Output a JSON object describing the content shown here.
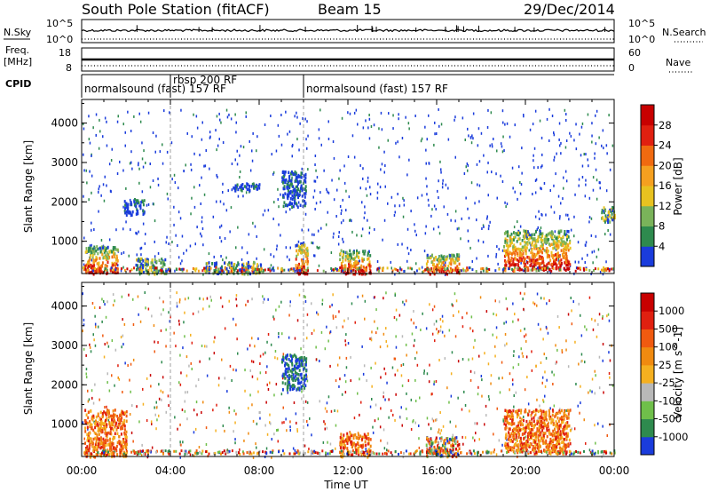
{
  "header": {
    "station": "South Pole Station (fitACF)",
    "beam": "Beam 15",
    "date": "29/Dec/2014"
  },
  "params": {
    "nsky_label": "N.Sky",
    "nsearch_label": "N.Search",
    "freq_label_1": "Freq.",
    "freq_label_2": "[MHz]",
    "nave_label": "Nave",
    "cpid_label": "CPID",
    "ticks_left": [
      "10^5",
      "10^0",
      "18",
      "8"
    ],
    "ticks_right": [
      "10^5",
      "10^0",
      "60",
      "0"
    ]
  },
  "cpid": {
    "segments": [
      {
        "label": "normalsound (fast) 157 RF",
        "start_hour": 0
      },
      {
        "label": "rbsp 200 RF",
        "start_hour": 4
      },
      {
        "label": "normalsound (fast) 157 RF",
        "start_hour": 10
      }
    ]
  },
  "axes": {
    "x_label": "Time UT",
    "y_label": "Slant Range [km]",
    "x_ticks": [
      "00:00",
      "04:00",
      "08:00",
      "12:00",
      "16:00",
      "20:00",
      "00:00"
    ],
    "y_ticks": [
      "1000",
      "2000",
      "3000",
      "4000"
    ]
  },
  "power_colorbar": {
    "title": "Power [dB]",
    "ticks": [
      "28",
      "24",
      "20",
      "16",
      "12",
      "8",
      "4"
    ],
    "colors": [
      "#1a3cdc",
      "#2e8a4e",
      "#7ab35a",
      "#e8c220",
      "#f5a020",
      "#f06a10",
      "#e02010",
      "#c80000"
    ]
  },
  "velocity_colorbar": {
    "title": "Velocity [m s^-1]",
    "ticks": [
      "1000",
      "500",
      "100",
      "25",
      "-25",
      "-100",
      "-500",
      "-1000"
    ],
    "colors": [
      "#1a3cdc",
      "#2e8a4e",
      "#6fbf4a",
      "#b8b8b8",
      "#f5b020",
      "#f08a10",
      "#f05a10",
      "#e02010",
      "#c80000"
    ]
  },
  "chart_data": [
    {
      "type": "heatmap",
      "title": "Power",
      "xlabel": "Time UT",
      "ylabel": "Slant Range [km]",
      "xlim": [
        0,
        24
      ],
      "ylim": [
        180,
        4600
      ],
      "colorbar_label": "Power [dB]",
      "colorbar_ticks": [
        4,
        8,
        12,
        16,
        20,
        24,
        28
      ],
      "echo_regions": [
        {
          "t": [
            0.1,
            1.6
          ],
          "r": [
            200,
            900
          ],
          "level": "strong"
        },
        {
          "t": [
            2.4,
            3.8
          ],
          "r": [
            200,
            600
          ],
          "level": "medium"
        },
        {
          "t": [
            1.9,
            2.8
          ],
          "r": [
            1700,
            2100
          ],
          "level": "weak"
        },
        {
          "t": [
            5.5,
            8.2
          ],
          "r": [
            200,
            500
          ],
          "level": "medium"
        },
        {
          "t": [
            6.8,
            8.0
          ],
          "r": [
            2300,
            2500
          ],
          "level": "weak"
        },
        {
          "t": [
            9.0,
            10.1
          ],
          "r": [
            1900,
            2800
          ],
          "level": "weak"
        },
        {
          "t": [
            9.6,
            10.2
          ],
          "r": [
            200,
            1000
          ],
          "level": "strong"
        },
        {
          "t": [
            11.6,
            13.0
          ],
          "r": [
            200,
            800
          ],
          "level": "strong"
        },
        {
          "t": [
            15.5,
            17.0
          ],
          "r": [
            200,
            700
          ],
          "level": "strong"
        },
        {
          "t": [
            19.0,
            22.0
          ],
          "r": [
            300,
            1300
          ],
          "level": "strong"
        },
        {
          "t": [
            23.4,
            24.0
          ],
          "r": [
            1500,
            1900
          ],
          "level": "medium"
        }
      ]
    },
    {
      "type": "heatmap",
      "title": "Velocity",
      "xlabel": "Time UT",
      "ylabel": "Slant Range [km]",
      "xlim": [
        0,
        24
      ],
      "ylim": [
        180,
        4600
      ],
      "colorbar_label": "Velocity [m s^-1]",
      "colorbar_ticks": [
        1000,
        500,
        100,
        25,
        -25,
        -100,
        -500,
        -1000
      ],
      "echo_regions": [
        {
          "t": [
            0.1,
            2.0
          ],
          "r": [
            200,
            1400
          ],
          "level": "toward"
        },
        {
          "t": [
            9.0,
            10.1
          ],
          "r": [
            1900,
            2800
          ],
          "level": "away"
        },
        {
          "t": [
            11.6,
            13.0
          ],
          "r": [
            200,
            800
          ],
          "level": "toward"
        },
        {
          "t": [
            15.5,
            17.0
          ],
          "r": [
            200,
            700
          ],
          "level": "mixed"
        },
        {
          "t": [
            19.0,
            22.0
          ],
          "r": [
            300,
            1400
          ],
          "level": "toward"
        }
      ]
    }
  ]
}
